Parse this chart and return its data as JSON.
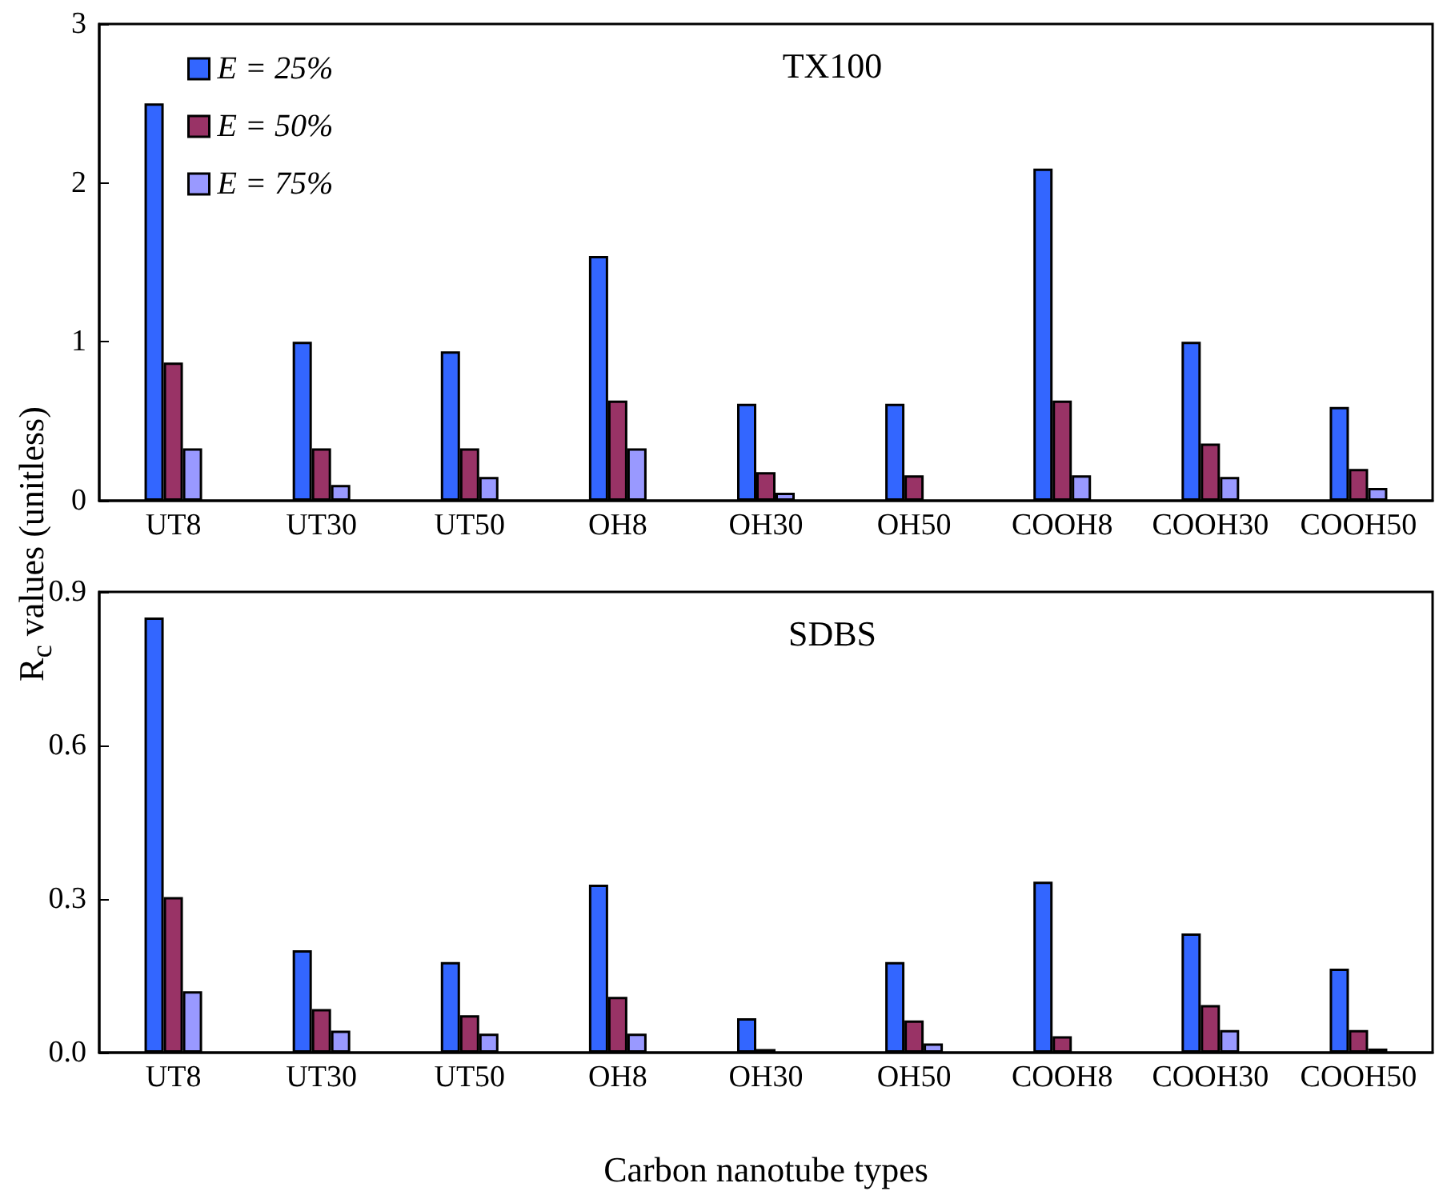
{
  "chart_data": [
    {
      "type": "bar",
      "title": "TX100",
      "ylabel": "R$_{c}$ values (unitless)",
      "legend": "top left",
      "categories": [
        "UT8",
        "UT30",
        "UT50",
        "OH8",
        "OH30",
        "OH50",
        "COOH8",
        "COOH30",
        "COOH50"
      ],
      "ylim": [
        0,
        3
      ],
      "yticks": [
        0,
        1,
        2,
        3
      ],
      "series": [
        {
          "name": "E = 25%",
          "color": "#3366ff",
          "values": [
            2.5,
            1.0,
            0.94,
            1.54,
            0.61,
            0.61,
            2.09,
            1.0,
            0.59
          ]
        },
        {
          "name": "E = 50%",
          "color": "#993366",
          "values": [
            0.87,
            0.33,
            0.33,
            0.63,
            0.18,
            0.16,
            0.63,
            0.36,
            0.2
          ]
        },
        {
          "name": "E = 75%",
          "color": "#9999ff",
          "values": [
            0.33,
            0.1,
            0.15,
            0.33,
            0.05,
            null,
            0.16,
            0.15,
            0.08
          ]
        }
      ]
    },
    {
      "type": "bar",
      "title": "SDBS",
      "xlabel": "Carbon nanotube types",
      "categories": [
        "UT8",
        "UT30",
        "UT50",
        "OH8",
        "OH30",
        "OH50",
        "COOH8",
        "COOH30",
        "COOH50"
      ],
      "ylim": [
        0,
        0.9
      ],
      "yticks": [
        {
          "value": 0,
          "label": "0.0"
        },
        0.3,
        0.6,
        0.9
      ],
      "series": [
        {
          "color": "#3366ff",
          "values": [
            0.85,
            0.2,
            0.177,
            0.328,
            0.067,
            0.177,
            0.334,
            0.233,
            0.164
          ]
        },
        {
          "color": "#993366",
          "values": [
            0.304,
            0.085,
            0.073,
            0.109,
            0.007,
            0.063,
            0.032,
            0.093,
            0.044
          ]
        },
        {
          "color": "#9999ff",
          "values": [
            0.12,
            0.043,
            0.037,
            0.037,
            null,
            0.018,
            null,
            0.044,
            0.008
          ]
        }
      ]
    }
  ]
}
